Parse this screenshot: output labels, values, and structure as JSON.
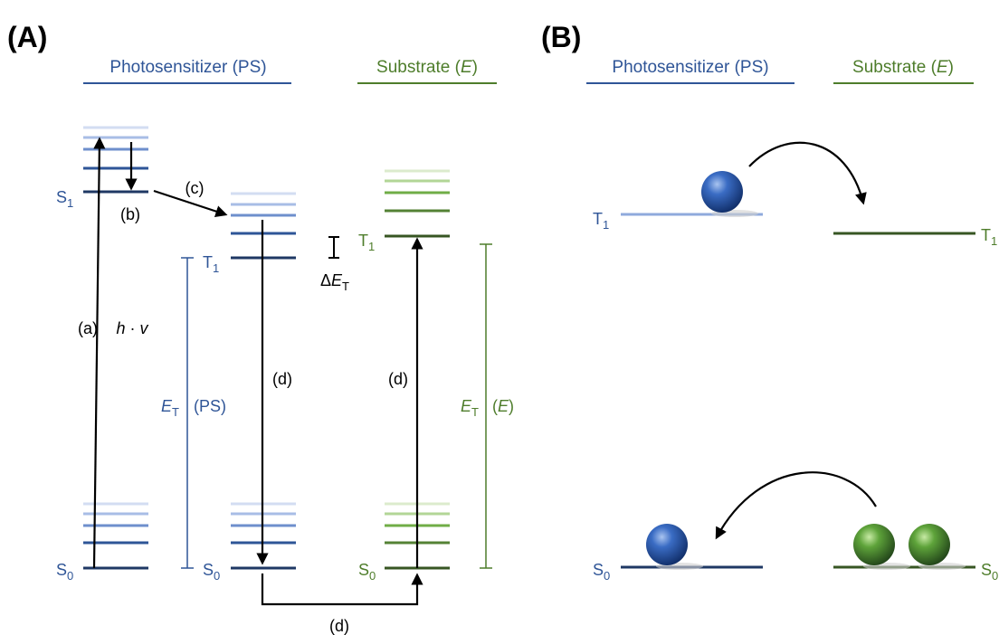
{
  "panel_a": {
    "label": "(A)",
    "ps_header": "Photosensitizer (PS)",
    "substrate_header": [
      "Substrate (",
      "E",
      ")"
    ],
    "levels": {
      "ps_s1": [
        "S",
        "1"
      ],
      "ps_s0": [
        "S",
        "0"
      ],
      "ps_t1": [
        "T",
        "1"
      ],
      "ps_t_s0": [
        "S",
        "0"
      ],
      "e_t1": [
        "T",
        "1"
      ],
      "e_s0": [
        "S",
        "0"
      ]
    },
    "steps": {
      "a": "(a)",
      "hv": [
        "h",
        " · ",
        "v"
      ],
      "b": "(b)",
      "c": "(c)",
      "d_ps": "(d)",
      "d_e": "(d)",
      "d_bottom": "(d)"
    },
    "delta_et": [
      "Δ",
      "E",
      "T"
    ],
    "et_ps": [
      "E",
      "T",
      "(PS)"
    ],
    "et_e": [
      "E",
      "T",
      "(",
      "E",
      ")"
    ]
  },
  "panel_b": {
    "label": "(B)",
    "ps_header": "Photosensitizer (PS)",
    "substrate_header": [
      "Substrate (",
      "E",
      ")"
    ],
    "levels": {
      "ps_t1": [
        "T",
        "1"
      ],
      "ps_s0": [
        "S",
        "0"
      ],
      "e_t1": [
        "T",
        "1"
      ],
      "e_s0": [
        "S",
        "0"
      ]
    }
  }
}
